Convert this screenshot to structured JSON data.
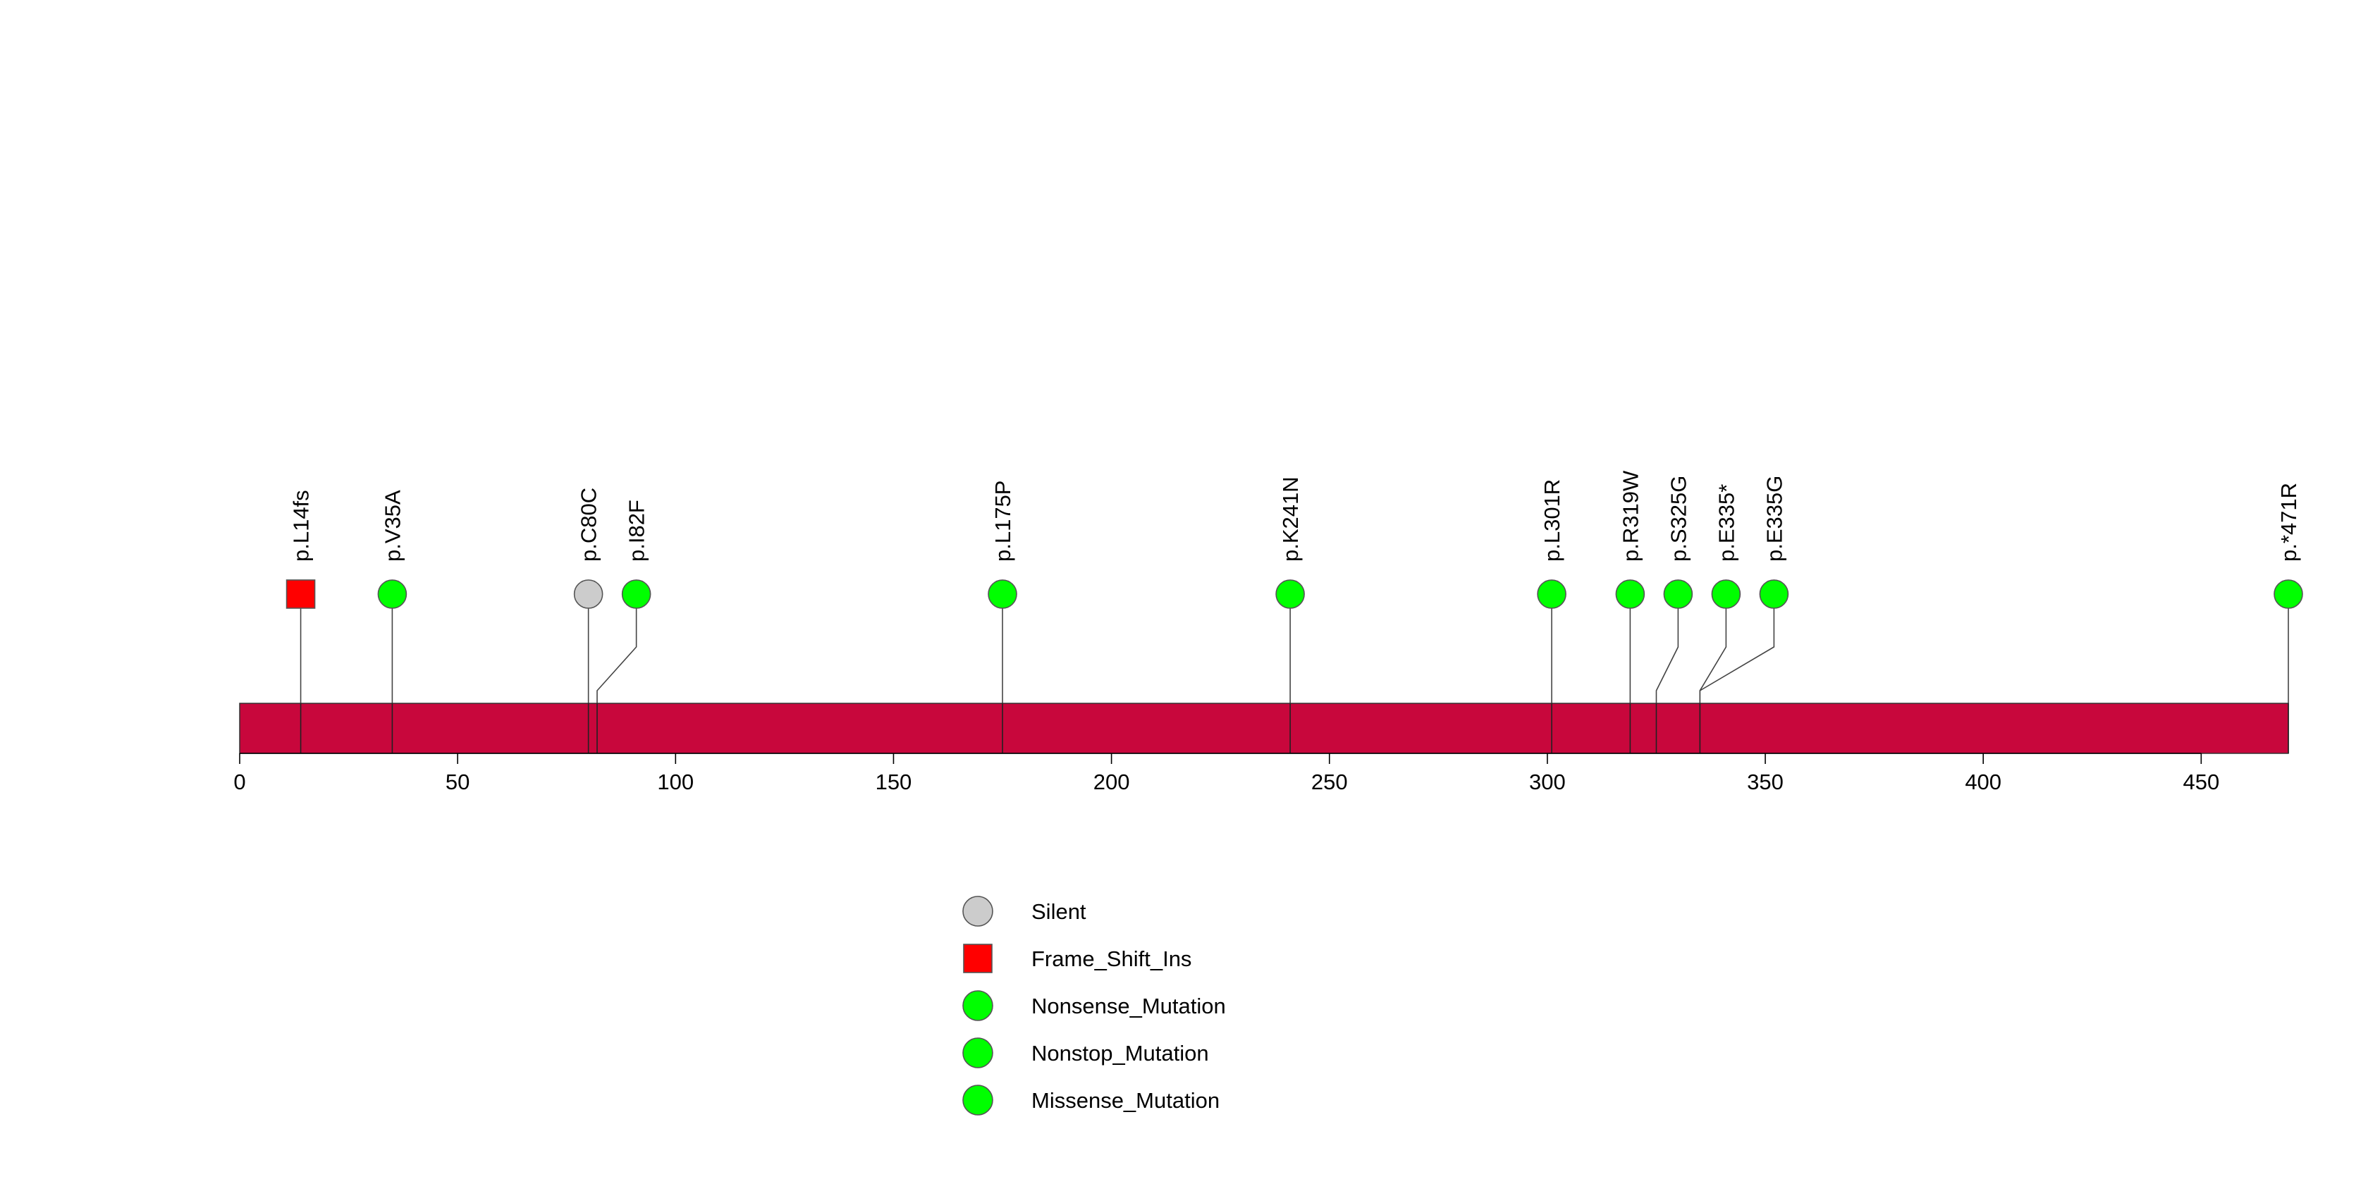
{
  "chart_data": {
    "type": "lollipop",
    "title": "",
    "xlabel": "",
    "ylabel": "",
    "xlim": [
      0,
      470
    ],
    "x_ticks": [
      0,
      50,
      100,
      150,
      200,
      250,
      300,
      350,
      400,
      450
    ],
    "x_tick_labels": [
      "0",
      "50",
      "100",
      "150",
      "200",
      "250",
      "300",
      "350",
      "400",
      "450"
    ],
    "protein_bar_color": "#C8073C",
    "mutations": [
      {
        "label": "p.L14fs",
        "position": 14,
        "type": "Frame_Shift_Ins"
      },
      {
        "label": "p.V35A",
        "position": 35,
        "type": "Missense_Mutation"
      },
      {
        "label": "p.C80C",
        "position": 80,
        "type": "Silent"
      },
      {
        "label": "p.I82F",
        "position": 82,
        "type": "Missense_Mutation"
      },
      {
        "label": "p.L175P",
        "position": 175,
        "type": "Missense_Mutation"
      },
      {
        "label": "p.K241N",
        "position": 241,
        "type": "Missense_Mutation"
      },
      {
        "label": "p.L301R",
        "position": 301,
        "type": "Missense_Mutation"
      },
      {
        "label": "p.R319W",
        "position": 319,
        "type": "Missense_Mutation"
      },
      {
        "label": "p.S325G",
        "position": 325,
        "type": "Missense_Mutation"
      },
      {
        "label": "p.E335*",
        "position": 335,
        "type": "Nonsense_Mutation"
      },
      {
        "label": "p.E335G",
        "position": 335,
        "type": "Missense_Mutation"
      },
      {
        "label": "p.*471R",
        "position": 470,
        "type": "Nonstop_Mutation"
      }
    ],
    "legend": [
      {
        "label": "Silent",
        "shape": "circle",
        "color": "#CCCCCC"
      },
      {
        "label": "Frame_Shift_Ins",
        "shape": "square",
        "color": "#FF0000"
      },
      {
        "label": "Nonsense_Mutation",
        "shape": "circle",
        "color": "#00FF00"
      },
      {
        "label": "Nonstop_Mutation",
        "shape": "circle",
        "color": "#00FF00"
      },
      {
        "label": "Missense_Mutation",
        "shape": "circle",
        "color": "#00FF00"
      }
    ]
  }
}
